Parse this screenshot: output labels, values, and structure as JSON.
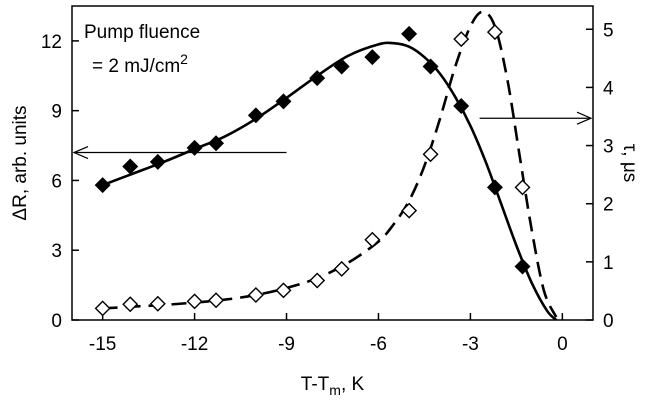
{
  "chart_data": {
    "type": "scatter",
    "xlabel": {
      "base": "T-T",
      "sub": "m",
      "tail": ", K"
    },
    "ylabel_left": "ΔR, arb. units",
    "ylabel_right": "τ, μs",
    "xlim": [
      -16,
      1
    ],
    "ylim_left": [
      0,
      13.5
    ],
    "ylim_right": [
      0,
      5.4
    ],
    "x_ticks": [
      -15,
      -12,
      -9,
      -6,
      -3,
      0
    ],
    "x_tick_labels": [
      "-15",
      "-12",
      "-9",
      "-6",
      "-3",
      "0"
    ],
    "y_left_ticks": [
      0,
      3,
      6,
      9,
      12
    ],
    "y_left_tick_labels": [
      "0",
      "3",
      "6",
      "9",
      "12"
    ],
    "y_right_ticks": [
      0,
      1,
      2,
      3,
      4,
      5
    ],
    "y_right_tick_labels": [
      "0",
      "1",
      "2",
      "3",
      "4",
      "5"
    ],
    "annotation": {
      "line1": "Pump fluence",
      "line2": "= 2 mJ/cm",
      "sup": "2"
    },
    "series": [
      {
        "axis": "left",
        "marker": "filled-diamond",
        "x": [
          -15.0,
          -14.1,
          -13.2,
          -12.0,
          -11.3,
          -10.0,
          -9.1,
          -8.0,
          -7.2,
          -6.2,
          -5.0,
          -4.3,
          -3.3,
          -2.2,
          -1.3
        ],
        "y": [
          5.8,
          6.6,
          6.8,
          7.4,
          7.6,
          8.8,
          9.4,
          10.4,
          10.9,
          11.3,
          12.3,
          10.9,
          9.2,
          5.7,
          2.3
        ]
      },
      {
        "axis": "left",
        "style": "solid-fit",
        "x": [
          -15.0,
          -14.0,
          -13.0,
          -12.0,
          -11.0,
          -10.0,
          -9.0,
          -8.0,
          -7.0,
          -6.0,
          -5.5,
          -5.0,
          -4.5,
          -4.0,
          -3.5,
          -3.0,
          -2.5,
          -2.0,
          -1.5,
          -1.0,
          -0.5,
          -0.2
        ],
        "y": [
          5.8,
          6.3,
          6.8,
          7.35,
          7.9,
          8.65,
          9.55,
          10.5,
          11.35,
          11.85,
          11.9,
          11.75,
          11.3,
          10.6,
          9.6,
          8.35,
          6.8,
          5.0,
          3.2,
          1.6,
          0.4,
          0.0
        ]
      },
      {
        "axis": "right",
        "marker": "open-diamond",
        "x": [
          -15.0,
          -14.1,
          -13.2,
          -12.0,
          -11.3,
          -10.0,
          -9.1,
          -8.0,
          -7.2,
          -6.2,
          -5.0,
          -4.3,
          -3.3,
          -2.2,
          -1.3
        ],
        "y": [
          0.2,
          0.27,
          0.28,
          0.32,
          0.34,
          0.43,
          0.51,
          0.68,
          0.88,
          1.38,
          1.88,
          2.85,
          4.83,
          4.95,
          2.28
        ]
      },
      {
        "axis": "right",
        "style": "dashed-fit",
        "x": [
          -15.0,
          -14.0,
          -13.0,
          -12.0,
          -11.0,
          -10.0,
          -9.0,
          -8.0,
          -7.0,
          -6.0,
          -5.5,
          -5.0,
          -4.5,
          -4.0,
          -3.5,
          -3.0,
          -2.6,
          -2.2,
          -1.8,
          -1.4,
          -1.0,
          -0.6,
          -0.2
        ],
        "y": [
          0.2,
          0.23,
          0.26,
          0.3,
          0.35,
          0.43,
          0.55,
          0.72,
          0.98,
          1.35,
          1.65,
          2.05,
          2.65,
          3.45,
          4.35,
          5.05,
          5.3,
          5.05,
          4.15,
          2.85,
          1.55,
          0.5,
          0.05
        ]
      }
    ],
    "arrows": [
      {
        "points_to": "left-axis",
        "y_left": 7.2,
        "x_from": -9.0
      },
      {
        "points_to": "right-axis",
        "y_right": 3.47,
        "x_from": -2.7
      }
    ]
  }
}
